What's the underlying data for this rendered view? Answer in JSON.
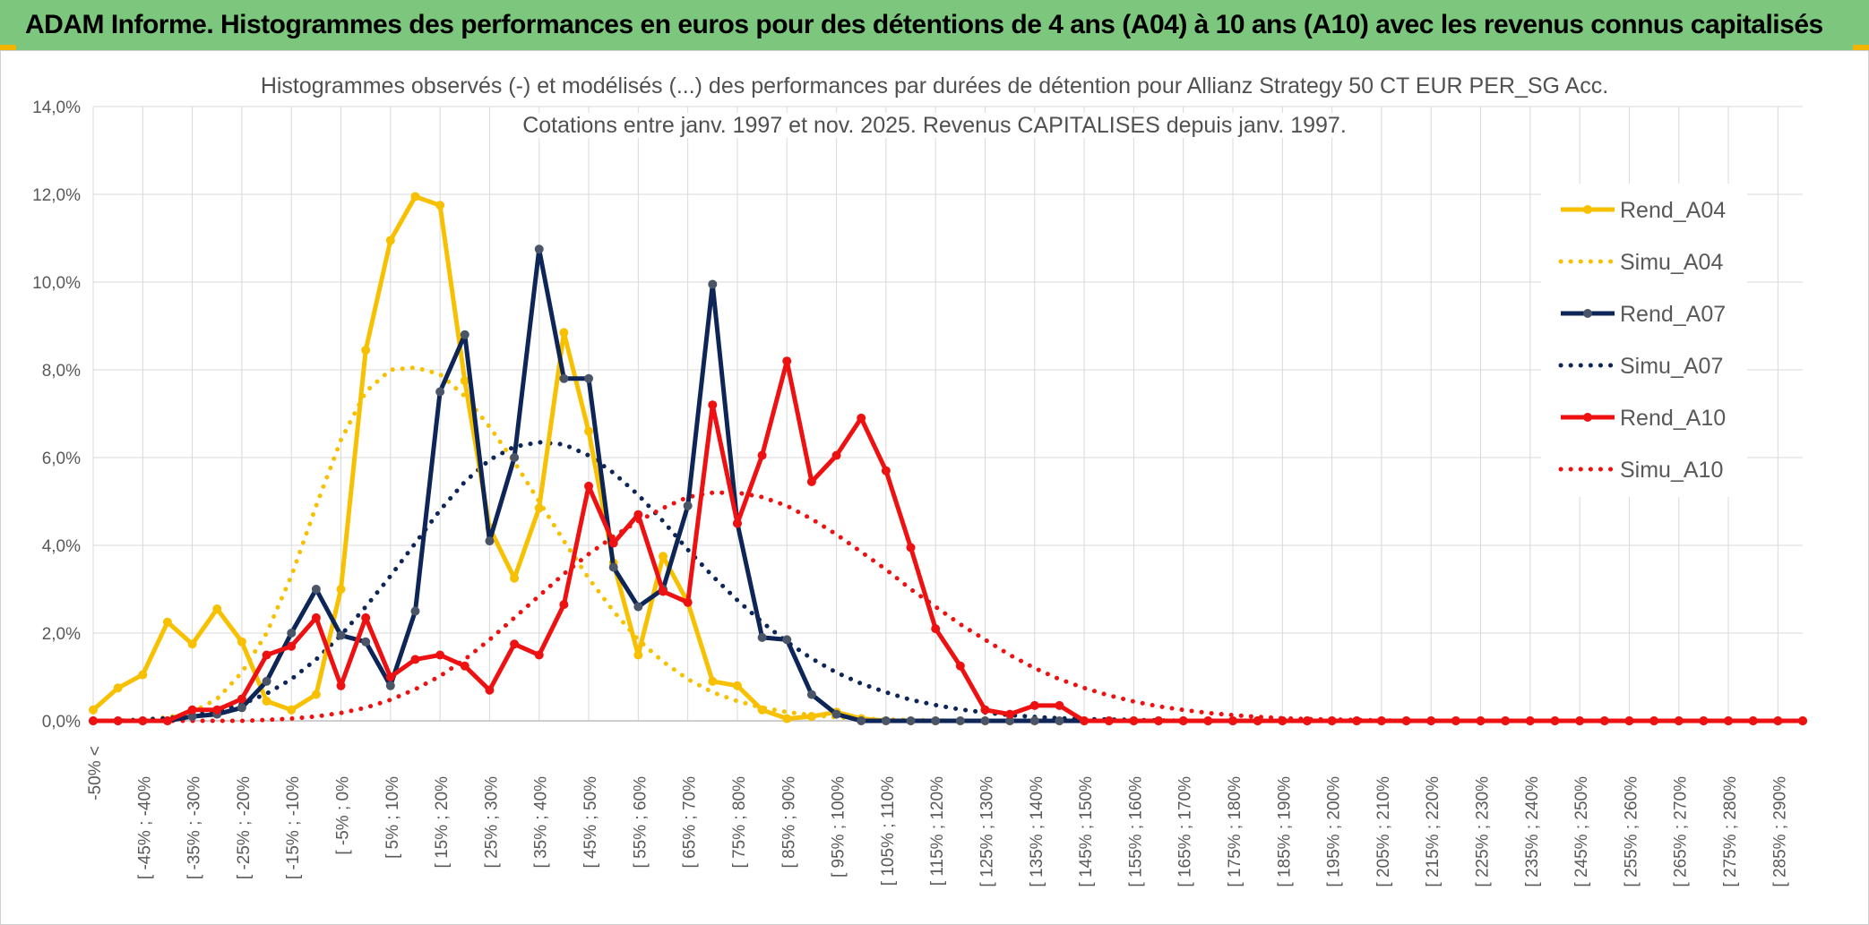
{
  "header": {
    "title": "ADAM Informe. Histogrammes des performances en euros pour des détentions de 4 ans (A04) à 10 ans (A10) avec les revenus connus capitalisés"
  },
  "colors": {
    "header_bg": "#7dc67d",
    "A04": "#f7c000",
    "A07": "#0d2557",
    "A07_marker": "#4a5568",
    "A10": "#ee1111",
    "grid": "#d9d9d9",
    "text": "#595959"
  },
  "chart_data": {
    "type": "line",
    "title": "Histogrammes observés (-) et modélisés (...) des performances par durées de détention pour Allianz Strategy 50 CT EUR PER_SG Acc.",
    "subtitle": "Cotations entre janv. 1997 et nov. 2025. Revenus CAPITALISES depuis janv. 1997.",
    "y_ticks": [
      "0,0%",
      "2,0%",
      "4,0%",
      "6,0%",
      "8,0%",
      "10,0%",
      "12,0%",
      "14,0%"
    ],
    "ylim": [
      0,
      14
    ],
    "categories": [
      "-50% <",
      "",
      "[ -45% ; -40%",
      "",
      "[ -35% ; -30%",
      "",
      "[ -25% ; -20%",
      "",
      "[ -15% ; -10%",
      "",
      "[ -5% ; 0%",
      "",
      "[ 5% ; 10%",
      "",
      "[ 15% ; 20%",
      "",
      "[ 25% ; 30%",
      "",
      "[ 35% ; 40%",
      "",
      "[ 45% ; 50%",
      "",
      "[ 55% ; 60%",
      "",
      "[ 65% ; 70%",
      "",
      "[ 75% ; 80%",
      "",
      "[ 85% ; 90%",
      "",
      "[ 95% ; 100%",
      "",
      "[ 105% ; 110%",
      "",
      "[ 115% ; 120%",
      "",
      "[ 125% ; 130%",
      "",
      "[ 135% ; 140%",
      "",
      "[ 145% ; 150%",
      "",
      "[ 155% ; 160%",
      "",
      "[ 165% ; 170%",
      "",
      "[ 175% ; 180%",
      "",
      "[ 185% ; 190%",
      "",
      "[ 195% ; 200%",
      "",
      "[ 205% ; 210%",
      "",
      "[ 215% ; 220%",
      "",
      "[ 225% ; 230%",
      "",
      "[ 235% ; 240%",
      "",
      "[ 245% ; 250%",
      "",
      "[ 255% ; 260%",
      "",
      "[ 265% ; 270%",
      "",
      "[ 275% ; 280%",
      "",
      "[ 285% ; 290%",
      ""
    ],
    "series": [
      {
        "name": "Rend_A04",
        "style": "solid",
        "color": "#f7c000",
        "values": [
          0.25,
          0.75,
          1.05,
          2.25,
          1.75,
          2.55,
          1.8,
          0.45,
          0.25,
          0.6,
          3.0,
          8.45,
          10.95,
          11.95,
          11.75,
          7.75,
          4.4,
          3.25,
          4.85,
          8.85,
          6.6,
          3.6,
          1.5,
          3.75,
          2.7,
          0.9,
          0.8,
          0.25,
          0.05,
          0.1,
          0.2,
          0.05,
          0,
          0,
          0,
          0,
          0,
          0,
          0,
          0,
          0,
          0,
          0,
          0,
          0,
          0,
          0,
          0,
          0,
          0,
          0,
          0,
          0,
          0,
          0,
          0,
          0,
          0,
          0,
          0,
          0,
          0,
          0,
          0,
          0,
          0,
          0,
          0,
          0,
          0
        ]
      },
      {
        "name": "Simu_A04",
        "style": "dotted",
        "color": "#f7c000",
        "values": [
          0,
          0,
          0.02,
          0.08,
          0.2,
          0.5,
          1.1,
          2.0,
          3.3,
          4.9,
          6.4,
          7.5,
          8.0,
          8.05,
          7.9,
          7.4,
          6.7,
          5.9,
          5.0,
          4.1,
          3.25,
          2.5,
          1.85,
          1.35,
          0.95,
          0.65,
          0.45,
          0.3,
          0.2,
          0.13,
          0.08,
          0.05,
          0.03,
          0.02,
          0.01,
          0,
          0,
          0,
          0,
          0,
          0,
          0,
          0,
          0,
          0,
          0,
          0,
          0,
          0,
          0,
          0,
          0,
          0,
          0,
          0,
          0,
          0,
          0,
          0,
          0,
          0,
          0,
          0,
          0,
          0,
          0,
          0,
          0,
          0,
          0
        ]
      },
      {
        "name": "Rend_A07",
        "style": "solid",
        "color": "#0d2557",
        "values": [
          0,
          0,
          0,
          0,
          0.1,
          0.15,
          0.3,
          0.9,
          2.0,
          3.0,
          1.95,
          1.8,
          0.8,
          2.5,
          7.5,
          8.8,
          4.1,
          6.0,
          10.75,
          7.8,
          7.8,
          3.5,
          2.6,
          3.0,
          4.9,
          9.95,
          4.5,
          1.9,
          1.85,
          0.6,
          0.15,
          0,
          0,
          0,
          0,
          0,
          0,
          0,
          0,
          0,
          0,
          0,
          0,
          0,
          0,
          0,
          0,
          0,
          0,
          0,
          0,
          0,
          0,
          0,
          0,
          0,
          0,
          0,
          0,
          0,
          0,
          0,
          0,
          0,
          0,
          0,
          0,
          0,
          0,
          0
        ]
      },
      {
        "name": "Simu_A07",
        "style": "dotted",
        "color": "#0d2557",
        "values": [
          0,
          0,
          0.03,
          0.06,
          0.12,
          0.22,
          0.38,
          0.62,
          0.95,
          1.4,
          1.95,
          2.6,
          3.3,
          4.05,
          4.8,
          5.45,
          5.95,
          6.25,
          6.35,
          6.3,
          6.05,
          5.65,
          5.15,
          4.55,
          3.9,
          3.3,
          2.75,
          2.25,
          1.8,
          1.42,
          1.1,
          0.85,
          0.65,
          0.48,
          0.36,
          0.26,
          0.19,
          0.13,
          0.09,
          0.06,
          0.04,
          0.03,
          0.02,
          0.01,
          0,
          0,
          0,
          0,
          0,
          0,
          0,
          0,
          0,
          0,
          0,
          0,
          0,
          0,
          0,
          0,
          0,
          0,
          0,
          0,
          0,
          0,
          0,
          0,
          0,
          0
        ]
      },
      {
        "name": "Rend_A10",
        "style": "solid",
        "color": "#ee1111",
        "values": [
          0,
          0,
          0,
          0,
          0.25,
          0.25,
          0.5,
          1.5,
          1.7,
          2.35,
          0.8,
          2.35,
          1.0,
          1.4,
          1.5,
          1.25,
          0.7,
          1.75,
          1.5,
          2.65,
          5.35,
          4.05,
          4.7,
          2.95,
          2.7,
          7.2,
          4.5,
          6.05,
          8.2,
          5.45,
          6.05,
          6.9,
          5.7,
          3.95,
          2.1,
          1.25,
          0.25,
          0.15,
          0.35,
          0.35,
          0,
          0,
          0,
          0,
          0,
          0,
          0,
          0,
          0,
          0,
          0,
          0,
          0,
          0,
          0,
          0,
          0,
          0,
          0,
          0,
          0,
          0,
          0,
          0,
          0,
          0,
          0,
          0,
          0,
          0
        ]
      },
      {
        "name": "Simu_A10",
        "style": "dotted",
        "color": "#ee1111",
        "values": [
          0,
          0,
          0,
          0,
          0,
          0,
          0,
          0.02,
          0.05,
          0.1,
          0.18,
          0.3,
          0.48,
          0.72,
          1.02,
          1.4,
          1.85,
          2.35,
          2.85,
          3.35,
          3.8,
          4.2,
          4.55,
          4.85,
          5.1,
          5.2,
          5.2,
          5.1,
          4.9,
          4.6,
          4.25,
          3.85,
          3.45,
          3.0,
          2.6,
          2.2,
          1.85,
          1.5,
          1.2,
          0.95,
          0.75,
          0.58,
          0.44,
          0.33,
          0.25,
          0.18,
          0.13,
          0.09,
          0.06,
          0.04,
          0.03,
          0.02,
          0.01,
          0,
          0,
          0,
          0,
          0,
          0,
          0,
          0,
          0,
          0,
          0,
          0,
          0,
          0,
          0,
          0,
          0
        ]
      }
    ],
    "legend": [
      "Rend_A04",
      "Simu_A04",
      "Rend_A07",
      "Simu_A07",
      "Rend_A10",
      "Simu_A10"
    ],
    "legend_position": "right"
  }
}
